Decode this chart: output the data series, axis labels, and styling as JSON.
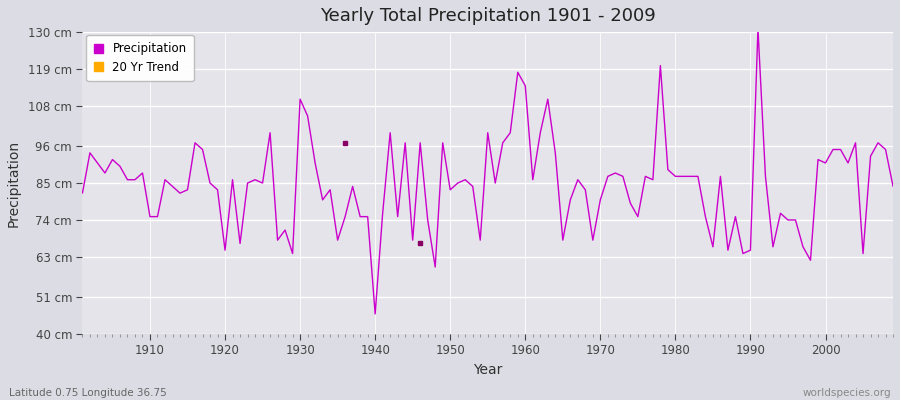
{
  "title": "Yearly Total Precipitation 1901 - 2009",
  "xlabel": "Year",
  "ylabel": "Precipitation",
  "subtitle": "Latitude 0.75 Longitude 36.75",
  "watermark": "worldspecies.org",
  "bg_color": "#dcdce4",
  "plot_bg_color": "#e4e4ea",
  "line_color": "#cc00cc",
  "trend_color": "#ffaa00",
  "ylim": [
    40,
    130
  ],
  "xlim": [
    1901,
    2009
  ],
  "yticks": [
    40,
    51,
    63,
    74,
    85,
    96,
    108,
    119,
    130
  ],
  "ytick_labels": [
    "40 cm",
    "51 cm",
    "63 cm",
    "74 cm",
    "85 cm",
    "96 cm",
    "108 cm",
    "119 cm",
    "130 cm"
  ],
  "xticks": [
    1910,
    1920,
    1930,
    1940,
    1950,
    1960,
    1970,
    1980,
    1990,
    2000
  ],
  "years": [
    1901,
    1902,
    1903,
    1904,
    1905,
    1906,
    1907,
    1908,
    1909,
    1910,
    1911,
    1912,
    1913,
    1914,
    1915,
    1916,
    1917,
    1918,
    1919,
    1920,
    1921,
    1922,
    1923,
    1924,
    1925,
    1926,
    1927,
    1928,
    1929,
    1930,
    1931,
    1932,
    1933,
    1934,
    1935,
    1936,
    1937,
    1938,
    1939,
    1940,
    1941,
    1942,
    1943,
    1944,
    1945,
    1946,
    1947,
    1948,
    1949,
    1950,
    1951,
    1952,
    1953,
    1954,
    1955,
    1956,
    1957,
    1958,
    1959,
    1960,
    1961,
    1962,
    1963,
    1964,
    1965,
    1966,
    1967,
    1968,
    1969,
    1970,
    1971,
    1972,
    1973,
    1974,
    1975,
    1976,
    1977,
    1978,
    1979,
    1980,
    1981,
    1982,
    1983,
    1984,
    1985,
    1986,
    1987,
    1988,
    1989,
    1990,
    1991,
    1992,
    1993,
    1994,
    1995,
    1996,
    1997,
    1998,
    1999,
    2000,
    2001,
    2002,
    2003,
    2004,
    2005,
    2006,
    2007,
    2008,
    2009
  ],
  "values": [
    82,
    94,
    91,
    88,
    92,
    90,
    86,
    86,
    88,
    75,
    75,
    86,
    84,
    82,
    83,
    97,
    95,
    85,
    83,
    65,
    86,
    67,
    85,
    86,
    85,
    100,
    68,
    71,
    64,
    110,
    105,
    91,
    80,
    83,
    68,
    75,
    84,
    75,
    75,
    46,
    76,
    100,
    75,
    97,
    68,
    97,
    74,
    60,
    97,
    83,
    85,
    86,
    84,
    68,
    100,
    85,
    97,
    100,
    118,
    114,
    86,
    100,
    110,
    94,
    68,
    80,
    86,
    83,
    68,
    80,
    87,
    88,
    87,
    79,
    75,
    87,
    86,
    120,
    89,
    87,
    87,
    87,
    87,
    75,
    66,
    87,
    65,
    75,
    64,
    65,
    131,
    87,
    66,
    76,
    74,
    74,
    66,
    62,
    92,
    91,
    95,
    95,
    91,
    97,
    64,
    93,
    97,
    95,
    84
  ],
  "trend_dots": [
    {
      "year": 1936,
      "value": 97
    },
    {
      "year": 1946,
      "value": 67
    }
  ]
}
